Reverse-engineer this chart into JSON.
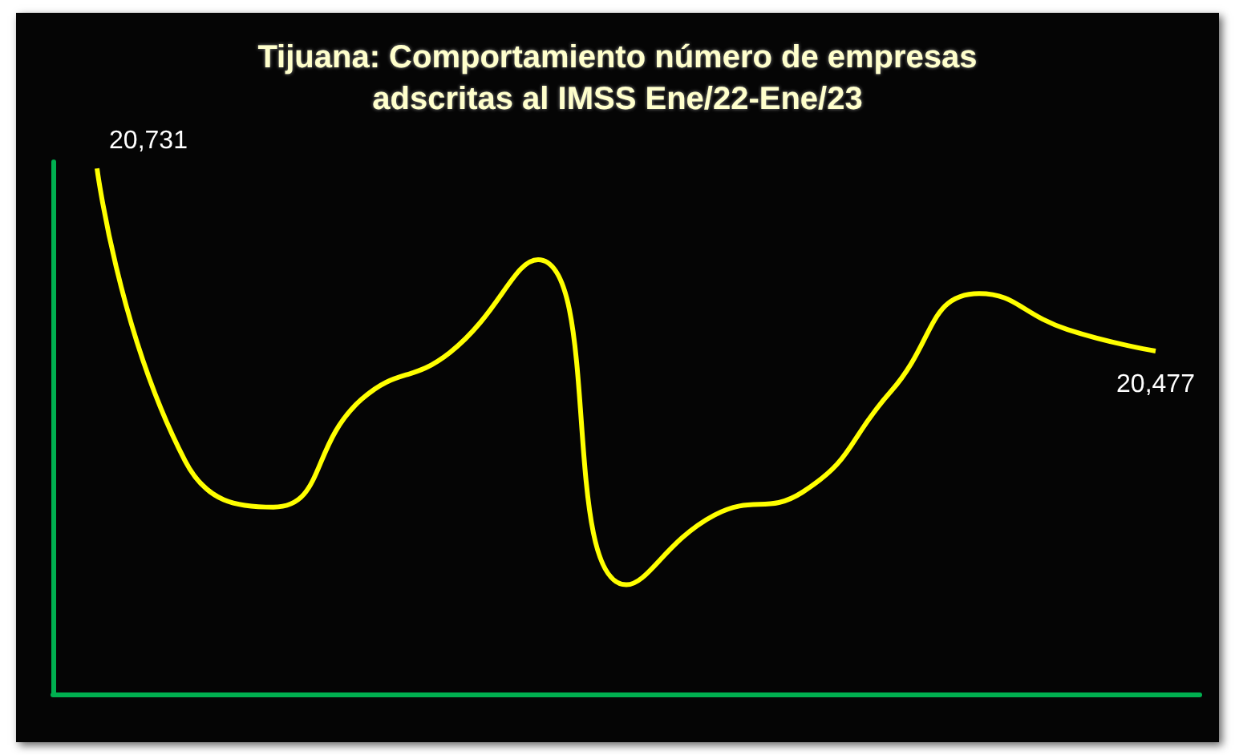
{
  "chart_data": {
    "type": "line",
    "title": "Tijuana: Comportamiento número de empresas\nadscritas al IMSS Ene/22-Ene/23",
    "categories": [
      null,
      null,
      null,
      null,
      null,
      null,
      null,
      null,
      null,
      null,
      null,
      null,
      null
    ],
    "series": [
      {
        "color": "#ffff00",
        "values": [
          20731,
          20324,
          20260,
          20410,
          20475,
          20604,
          20152,
          20249,
          20281,
          20421,
          20557,
          20507,
          20477
        ],
        "value_labels": [
          "20,731",
          null,
          null,
          null,
          null,
          null,
          null,
          null,
          null,
          null,
          null,
          null,
          "20,477"
        ]
      }
    ],
    "ylim": [
      20000,
      20740
    ],
    "tick_labels": false,
    "grid": false,
    "marker": "none",
    "line_style": "solid"
  }
}
